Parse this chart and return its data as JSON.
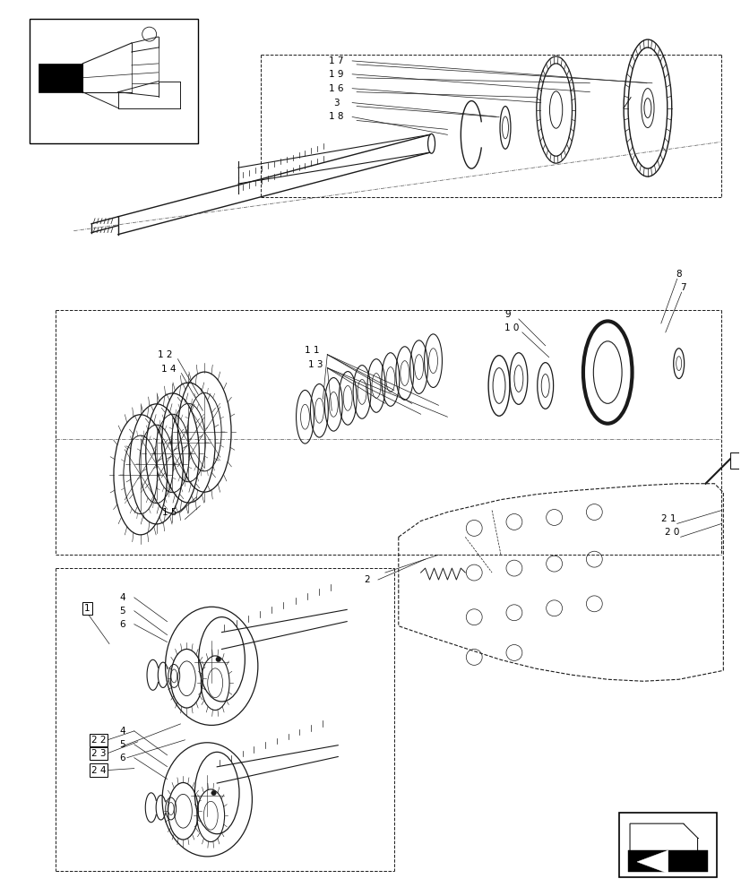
{
  "bg_color": "#ffffff",
  "line_color": "#1a1a1a",
  "fig_width": 8.28,
  "fig_height": 10.0,
  "dpi": 100
}
